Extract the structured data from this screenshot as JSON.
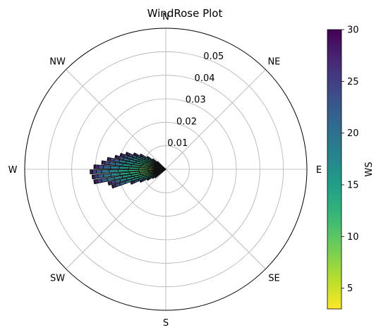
{
  "chart_data": {
    "type": "windrose",
    "title": "WindRose Plot",
    "direction_labels": [
      {
        "label": "N",
        "angle": 0
      },
      {
        "label": "NE",
        "angle": 45
      },
      {
        "label": "E",
        "angle": 90
      },
      {
        "label": "SE",
        "angle": 135
      },
      {
        "label": "S",
        "angle": 180
      },
      {
        "label": "SW",
        "angle": 225
      },
      {
        "label": "W",
        "angle": 270
      },
      {
        "label": "NW",
        "angle": 315
      }
    ],
    "radial_ticks": [
      "0.01",
      "0.02",
      "0.03",
      "0.04",
      "0.05"
    ],
    "radial_tick_values": [
      0.01,
      0.02,
      0.03,
      0.04,
      0.05
    ],
    "rmax": 0.06,
    "colorbar": {
      "label": "WS",
      "colormap": "viridis_r",
      "min": 3,
      "max": 30,
      "ticks": [
        "5",
        "10",
        "15",
        "20",
        "25",
        "30"
      ],
      "tick_values": [
        5,
        10,
        15,
        20,
        25,
        30
      ]
    },
    "grid": true,
    "bins": [
      {
        "direction": 232,
        "speeds": [
          0.0021,
          0.0032,
          0.0041,
          0.0047,
          0.0052,
          0.0056,
          0.0058
        ]
      },
      {
        "direction": 236,
        "speeds": [
          0.0023,
          0.0035,
          0.0046,
          0.0055,
          0.0062,
          0.0066,
          0.0068
        ]
      },
      {
        "direction": 240,
        "speeds": [
          0.0026,
          0.0041,
          0.0056,
          0.0069,
          0.0079,
          0.0087,
          0.0091
        ]
      },
      {
        "direction": 244,
        "speeds": [
          0.0029,
          0.0048,
          0.0067,
          0.0084,
          0.0099,
          0.011,
          0.0117,
          0.0121
        ]
      },
      {
        "direction": 248,
        "speeds": [
          0.0032,
          0.0054,
          0.0078,
          0.0102,
          0.0125,
          0.0144,
          0.0156,
          0.016
        ]
      },
      {
        "direction": 252,
        "speeds": [
          0.0035,
          0.0061,
          0.009,
          0.0121,
          0.0151,
          0.0181,
          0.0205,
          0.0225,
          0.0236,
          0.024
        ]
      },
      {
        "direction": 256,
        "speeds": [
          0.0037,
          0.0067,
          0.0101,
          0.0137,
          0.0171,
          0.02,
          0.0222,
          0.0238,
          0.0248,
          0.0252
        ]
      },
      {
        "direction": 260,
        "speeds": [
          0.0038,
          0.0071,
          0.0109,
          0.0148,
          0.0187,
          0.0222,
          0.0253,
          0.0278,
          0.0295,
          0.0305,
          0.031
        ]
      },
      {
        "direction": 264,
        "speeds": [
          0.0039,
          0.0073,
          0.0113,
          0.0155,
          0.0196,
          0.0234,
          0.0266,
          0.029,
          0.0305,
          0.0312,
          0.0315
        ]
      },
      {
        "direction": 268,
        "speeds": [
          0.004,
          0.0075,
          0.0116,
          0.016,
          0.0203,
          0.0241,
          0.0273,
          0.0296,
          0.0311,
          0.0318,
          0.0322
        ]
      },
      {
        "direction": 272,
        "speeds": [
          0.004,
          0.0074,
          0.0114,
          0.0157,
          0.0198,
          0.0235,
          0.0265,
          0.0287,
          0.03,
          0.0306
        ]
      },
      {
        "direction": 276,
        "speeds": [
          0.0039,
          0.0071,
          0.0108,
          0.0147,
          0.0184,
          0.0216,
          0.0242,
          0.026,
          0.027,
          0.0274
        ]
      },
      {
        "direction": 280,
        "speeds": [
          0.0038,
          0.0068,
          0.0102,
          0.0138,
          0.0171,
          0.02,
          0.0223,
          0.0239,
          0.0248,
          0.0252
        ]
      },
      {
        "direction": 284,
        "speeds": [
          0.0037,
          0.0065,
          0.0097,
          0.013,
          0.016,
          0.0185,
          0.0204,
          0.0216,
          0.0222
        ]
      },
      {
        "direction": 288,
        "speeds": [
          0.0035,
          0.0061,
          0.009,
          0.012,
          0.0147,
          0.017,
          0.0187,
          0.0198,
          0.0203
        ]
      },
      {
        "direction": 292,
        "speeds": [
          0.0033,
          0.0057,
          0.0083,
          0.011,
          0.0134,
          0.0154,
          0.0168,
          0.0177,
          0.0182
        ]
      },
      {
        "direction": 296,
        "speeds": [
          0.0031,
          0.0052,
          0.0075,
          0.0098,
          0.0118,
          0.0134,
          0.0145,
          0.0151
        ]
      },
      {
        "direction": 300,
        "speeds": [
          0.0028,
          0.0046,
          0.0066,
          0.0085,
          0.0101,
          0.0113,
          0.0121,
          0.0125
        ]
      },
      {
        "direction": 304,
        "speeds": [
          0.0025,
          0.004,
          0.0056,
          0.0071,
          0.0083,
          0.0091,
          0.0095
        ]
      },
      {
        "direction": 308,
        "speeds": [
          0.0022,
          0.0035,
          0.0047,
          0.0057,
          0.0065,
          0.007
        ]
      },
      {
        "direction": 312,
        "speeds": [
          0.0019,
          0.0029,
          0.0038,
          0.0044,
          0.0048
        ]
      }
    ]
  }
}
